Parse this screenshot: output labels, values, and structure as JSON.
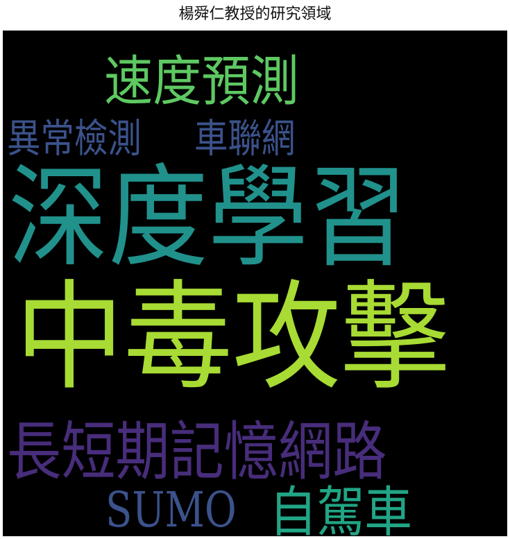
{
  "title": "楊舜仁教授的研究領域",
  "words": [
    {
      "text": "速度預測",
      "color": "#5ec962"
    },
    {
      "text": "異常檢測",
      "color": "#3b528b"
    },
    {
      "text": "車聯網",
      "color": "#3b528b"
    },
    {
      "text": "深度學習",
      "color": "#21918c"
    },
    {
      "text": "中毒攻擊",
      "color": "#a8db34"
    },
    {
      "text": "長短期記憶網路",
      "color": "#472d7b"
    },
    {
      "text": "SUMO",
      "color": "#3b528b"
    },
    {
      "text": "自駕車",
      "color": "#21a585"
    }
  ],
  "background_color": "#000000"
}
